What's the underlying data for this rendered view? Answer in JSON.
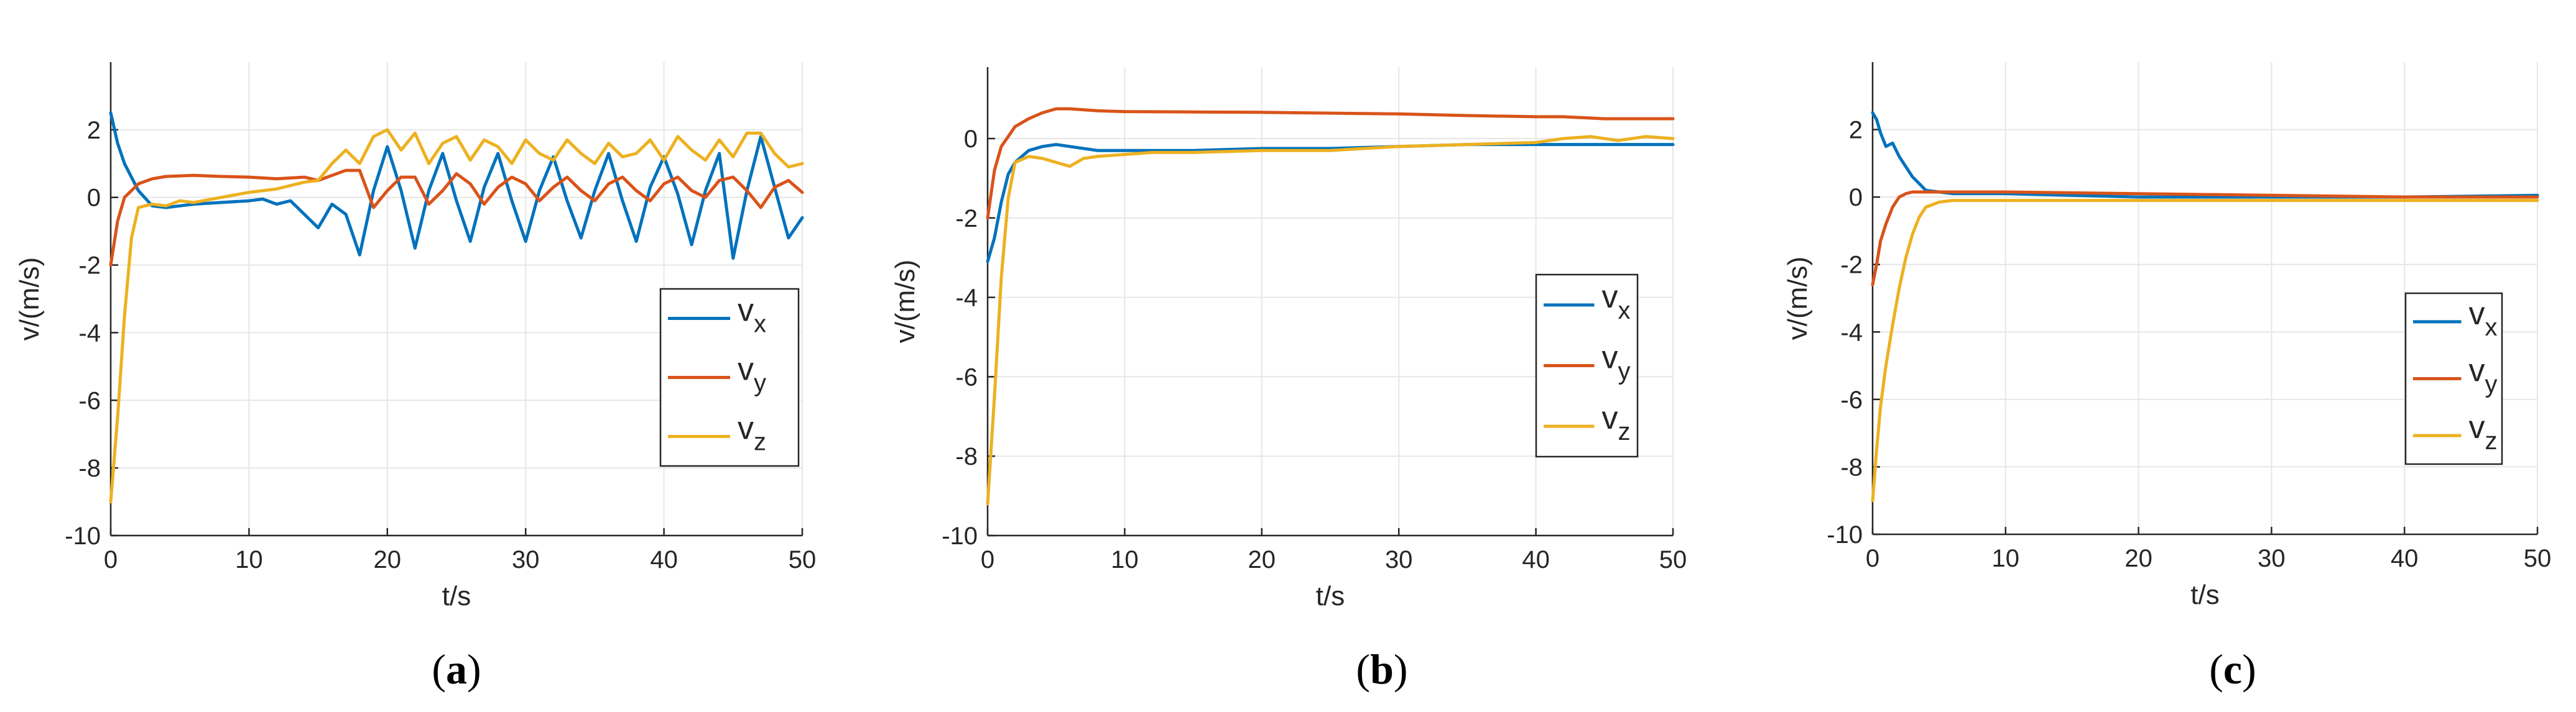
{
  "figure": {
    "captions": [
      "(a)",
      "(b)",
      "(c)"
    ]
  },
  "colors": {
    "vx": "#0072BD",
    "vy": "#D95319",
    "vz": "#EDB120",
    "axis": "#262626",
    "grid": "#e6e6e6"
  },
  "chart_data": [
    {
      "type": "line",
      "panel": "a",
      "title": "",
      "xlabel": "t/s",
      "ylabel": "v/(m/s)",
      "xlim": [
        0,
        50
      ],
      "ylim": [
        -10,
        4
      ],
      "xticks": [
        0,
        10,
        20,
        30,
        40,
        50
      ],
      "yticks": [
        -10,
        -8,
        -6,
        -4,
        -2,
        0,
        2
      ],
      "grid": true,
      "legend_position": "right-bottom",
      "series": [
        {
          "name": "v",
          "sub": "x",
          "key": "vx",
          "x": [
            0,
            0.5,
            1,
            2,
            3,
            4,
            5,
            6,
            8,
            10,
            11,
            12,
            13,
            14,
            15,
            16,
            17,
            18,
            19,
            20,
            21,
            22,
            23,
            24,
            25,
            26,
            27,
            28,
            29,
            30,
            31,
            32,
            33,
            34,
            35,
            36,
            37,
            38,
            39,
            40,
            41,
            42,
            43,
            44,
            45,
            46,
            47,
            48,
            49,
            50
          ],
          "y": [
            2.5,
            1.6,
            1.0,
            0.2,
            -0.25,
            -0.3,
            -0.25,
            -0.2,
            -0.15,
            -0.1,
            -0.05,
            -0.2,
            -0.1,
            -0.5,
            -0.9,
            -0.2,
            -0.5,
            -1.7,
            0.2,
            1.5,
            0.2,
            -1.5,
            0.2,
            1.3,
            -0.1,
            -1.3,
            0.3,
            1.3,
            -0.1,
            -1.3,
            0.2,
            1.2,
            -0.1,
            -1.2,
            0.2,
            1.3,
            -0.1,
            -1.3,
            0.3,
            1.2,
            0.1,
            -1.4,
            0.2,
            1.3,
            -1.8,
            0.2,
            1.8,
            0.3,
            -1.2,
            -0.6
          ]
        },
        {
          "name": "v",
          "sub": "y",
          "key": "vy",
          "x": [
            0,
            0.5,
            1,
            2,
            3,
            4,
            6,
            8,
            10,
            12,
            14,
            15,
            16,
            17,
            18,
            19,
            20,
            21,
            22,
            23,
            24,
            25,
            26,
            27,
            28,
            29,
            30,
            31,
            32,
            33,
            34,
            35,
            36,
            37,
            38,
            39,
            40,
            41,
            42,
            43,
            44,
            45,
            46,
            47,
            48,
            49,
            50
          ],
          "y": [
            -2.0,
            -0.7,
            0.0,
            0.4,
            0.55,
            0.62,
            0.65,
            0.62,
            0.6,
            0.55,
            0.6,
            0.5,
            0.65,
            0.8,
            0.8,
            -0.3,
            0.2,
            0.6,
            0.6,
            -0.2,
            0.2,
            0.7,
            0.4,
            -0.2,
            0.3,
            0.6,
            0.4,
            -0.1,
            0.3,
            0.6,
            0.2,
            -0.1,
            0.4,
            0.6,
            0.2,
            -0.1,
            0.4,
            0.6,
            0.2,
            0.0,
            0.5,
            0.6,
            0.2,
            -0.3,
            0.3,
            0.5,
            0.15
          ]
        },
        {
          "name": "v",
          "sub": "z",
          "key": "vz",
          "x": [
            0,
            0.5,
            1,
            1.5,
            2,
            3,
            4,
            5,
            6,
            8,
            10,
            12,
            14,
            15,
            16,
            17,
            18,
            19,
            20,
            21,
            22,
            23,
            24,
            25,
            26,
            27,
            28,
            29,
            30,
            31,
            32,
            33,
            34,
            35,
            36,
            37,
            38,
            39,
            40,
            41,
            42,
            43,
            44,
            45,
            46,
            47,
            48,
            49,
            50
          ],
          "y": [
            -9.0,
            -6.5,
            -3.5,
            -1.2,
            -0.3,
            -0.2,
            -0.25,
            -0.1,
            -0.15,
            0.0,
            0.15,
            0.25,
            0.45,
            0.5,
            1.0,
            1.4,
            1.0,
            1.8,
            2.0,
            1.4,
            1.9,
            1.0,
            1.6,
            1.8,
            1.1,
            1.7,
            1.5,
            1.0,
            1.7,
            1.3,
            1.1,
            1.7,
            1.3,
            1.0,
            1.6,
            1.2,
            1.3,
            1.7,
            1.1,
            1.8,
            1.4,
            1.1,
            1.7,
            1.2,
            1.9,
            1.9,
            1.3,
            0.9,
            1.0
          ]
        }
      ]
    },
    {
      "type": "line",
      "panel": "b",
      "title": "",
      "xlabel": "t/s",
      "ylabel": "v/(m/s)",
      "xlim": [
        0,
        50
      ],
      "ylim": [
        -10,
        1.8
      ],
      "xticks": [
        0,
        10,
        20,
        30,
        40,
        50
      ],
      "yticks": [
        -10,
        -8,
        -6,
        -4,
        -2,
        0
      ],
      "grid": true,
      "legend_position": "right-bottom",
      "series": [
        {
          "name": "v",
          "sub": "x",
          "key": "vx",
          "x": [
            0,
            0.5,
            1,
            1.5,
            2,
            3,
            4,
            5,
            6,
            8,
            10,
            15,
            20,
            25,
            30,
            35,
            40,
            45,
            50
          ],
          "y": [
            -3.1,
            -2.5,
            -1.6,
            -0.9,
            -0.6,
            -0.3,
            -0.2,
            -0.15,
            -0.2,
            -0.3,
            -0.3,
            -0.3,
            -0.25,
            -0.25,
            -0.2,
            -0.15,
            -0.15,
            -0.15,
            -0.15
          ]
        },
        {
          "name": "v",
          "sub": "y",
          "key": "vy",
          "x": [
            0,
            0.5,
            1,
            2,
            3,
            4,
            5,
            6,
            8,
            10,
            15,
            20,
            25,
            30,
            35,
            40,
            42,
            45,
            50
          ],
          "y": [
            -2.0,
            -0.8,
            -0.2,
            0.3,
            0.5,
            0.65,
            0.75,
            0.75,
            0.7,
            0.68,
            0.67,
            0.66,
            0.64,
            0.62,
            0.58,
            0.55,
            0.55,
            0.5,
            0.5
          ]
        },
        {
          "name": "v",
          "sub": "z",
          "key": "vz",
          "x": [
            0,
            0.5,
            1,
            1.5,
            2,
            3,
            4,
            5,
            6,
            7,
            8,
            10,
            12,
            15,
            20,
            25,
            30,
            35,
            40,
            42,
            44,
            46,
            48,
            50
          ],
          "y": [
            -9.2,
            -6.5,
            -3.5,
            -1.5,
            -0.6,
            -0.45,
            -0.5,
            -0.6,
            -0.7,
            -0.5,
            -0.45,
            -0.4,
            -0.35,
            -0.35,
            -0.3,
            -0.3,
            -0.2,
            -0.15,
            -0.1,
            0.0,
            0.05,
            -0.05,
            0.05,
            0.0
          ]
        }
      ]
    },
    {
      "type": "line",
      "panel": "c",
      "title": "",
      "xlabel": "t/s",
      "ylabel": "v/(m/s)",
      "xlim": [
        0,
        50
      ],
      "ylim": [
        -10,
        4
      ],
      "xticks": [
        0,
        10,
        20,
        30,
        40,
        50
      ],
      "yticks": [
        -10,
        -8,
        -6,
        -4,
        -2,
        0,
        2
      ],
      "grid": true,
      "legend_position": "right-bottom",
      "series": [
        {
          "name": "v",
          "sub": "x",
          "key": "vx",
          "x": [
            0,
            0.3,
            0.6,
            1,
            1.5,
            2,
            2.5,
            3,
            3.5,
            4,
            5,
            6,
            8,
            10,
            15,
            20,
            30,
            40,
            50
          ],
          "y": [
            2.5,
            2.3,
            1.9,
            1.5,
            1.6,
            1.2,
            0.9,
            0.6,
            0.4,
            0.2,
            0.15,
            0.1,
            0.1,
            0.1,
            0.05,
            0.0,
            0.0,
            0.0,
            0.05
          ]
        },
        {
          "name": "v",
          "sub": "y",
          "key": "vy",
          "x": [
            0,
            0.3,
            0.6,
            1,
            1.5,
            2,
            2.5,
            3,
            4,
            5,
            8,
            10,
            20,
            30,
            40,
            50
          ],
          "y": [
            -2.6,
            -2.0,
            -1.3,
            -0.8,
            -0.3,
            0.0,
            0.1,
            0.15,
            0.15,
            0.15,
            0.15,
            0.15,
            0.1,
            0.05,
            0.0,
            0.0
          ]
        },
        {
          "name": "v",
          "sub": "z",
          "key": "vz",
          "x": [
            0,
            0.3,
            0.6,
            1,
            1.5,
            2,
            2.5,
            3,
            3.5,
            4,
            5,
            6,
            8,
            10,
            20,
            30,
            40,
            50
          ],
          "y": [
            -9.0,
            -7.5,
            -6.2,
            -5.0,
            -3.8,
            -2.7,
            -1.8,
            -1.1,
            -0.6,
            -0.3,
            -0.15,
            -0.1,
            -0.1,
            -0.1,
            -0.1,
            -0.1,
            -0.1,
            -0.1
          ]
        }
      ]
    }
  ]
}
